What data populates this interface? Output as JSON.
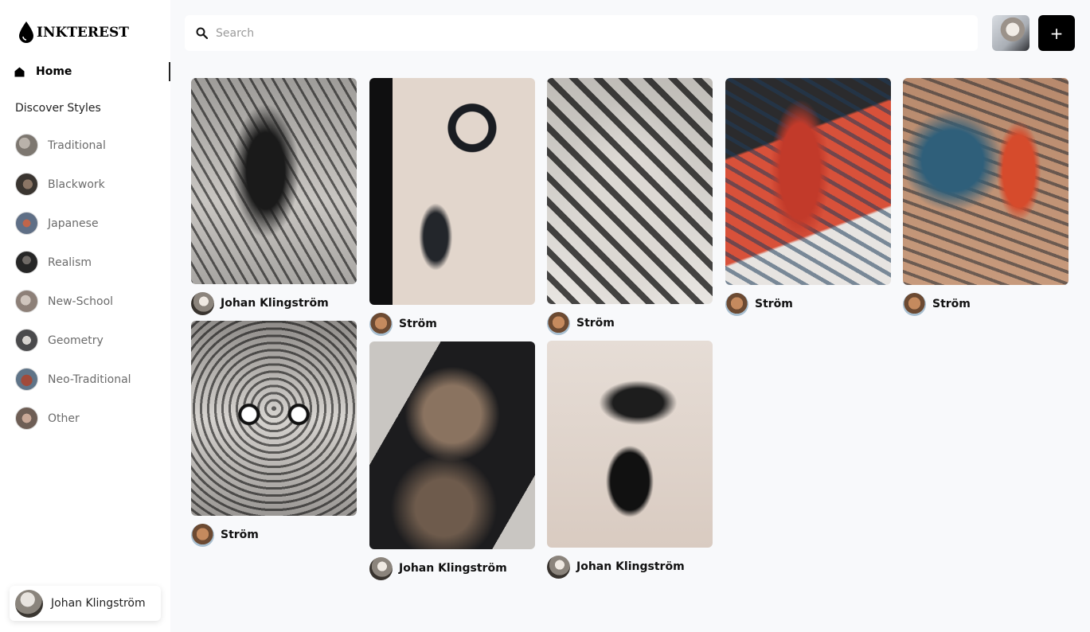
{
  "app": {
    "logo_text": "INKTEREST"
  },
  "sidebar": {
    "home_label": "Home",
    "discover_title": "Discover Styles",
    "styles": [
      {
        "label": "Traditional",
        "icon": "traditional-thumbnail",
        "color": "#7d7770"
      },
      {
        "label": "Blackwork",
        "icon": "blackwork-thumbnail",
        "color": "#3a3530"
      },
      {
        "label": "Japanese",
        "icon": "japanese-thumbnail",
        "color": "#5f6f86"
      },
      {
        "label": "Realism",
        "icon": "realism-thumbnail",
        "color": "#262626"
      },
      {
        "label": "New-School",
        "icon": "new-school-thumbnail",
        "color": "#8d8078"
      },
      {
        "label": "Geometry",
        "icon": "geometry-thumbnail",
        "color": "#4a4a4c"
      },
      {
        "label": "Neo-Traditional",
        "icon": "neo-traditional-thumbnail",
        "color": "#a14a3a"
      },
      {
        "label": "Other",
        "icon": "other-thumbnail",
        "color": "#6e5e55"
      }
    ],
    "user_name": "Johan Klingström"
  },
  "search": {
    "placeholder": "Search",
    "value": ""
  },
  "toolbar": {
    "add_label": "+"
  },
  "feed": {
    "pins": [
      {
        "author": "Johan Klingström",
        "image": "eagle-back-tattoo"
      },
      {
        "author": "Ström",
        "image": "moon-demon-tattoo"
      },
      {
        "author": "Ström",
        "image": "frog-blackwork-tattoo"
      },
      {
        "author": "Ström",
        "image": "red-koi-sleeve-tattoo"
      },
      {
        "author": "Ström",
        "image": "koi-chest-tattoo"
      },
      {
        "author": "Ström",
        "image": "dragon-face-tattoo"
      },
      {
        "author": "Johan Klingström",
        "image": "blackwork-sleeve-tattoo"
      },
      {
        "author": "Johan Klingström",
        "image": "ginkgo-vase-tattoo"
      }
    ]
  }
}
